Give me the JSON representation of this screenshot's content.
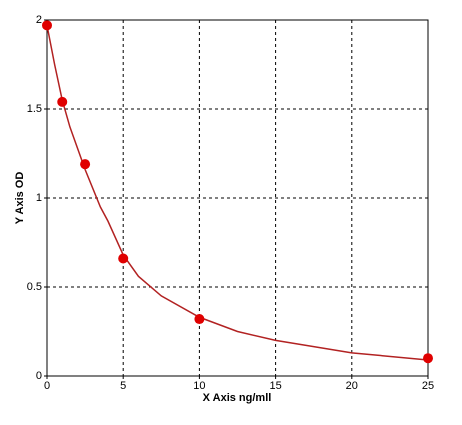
{
  "chart_data": {
    "type": "scatter",
    "x_label": "X Axis ng/mll",
    "y_label": "Y Axis OD",
    "xlim": [
      0,
      25
    ],
    "xticks": [
      0,
      5,
      10,
      15,
      20,
      25
    ],
    "ylim": [
      0,
      2
    ],
    "yticks": [
      0,
      0.5,
      1,
      1.5,
      2
    ],
    "grid": true,
    "series": [
      {
        "type": "scatter",
        "color": "#e00000",
        "x": [
          0,
          1,
          2.5,
          5,
          10,
          25
        ],
        "values": [
          1.97,
          1.54,
          1.19,
          0.66,
          0.32,
          0.1
        ]
      },
      {
        "type": "line",
        "color": "#b22222",
        "x": [
          0,
          0.5,
          1,
          1.5,
          2.5,
          3.5,
          4,
          5,
          6,
          7.5,
          10,
          12.5,
          15,
          20,
          25
        ],
        "values": [
          1.97,
          1.75,
          1.55,
          1.4,
          1.16,
          0.95,
          0.87,
          0.68,
          0.56,
          0.45,
          0.33,
          0.25,
          0.2,
          0.13,
          0.09
        ]
      }
    ]
  }
}
